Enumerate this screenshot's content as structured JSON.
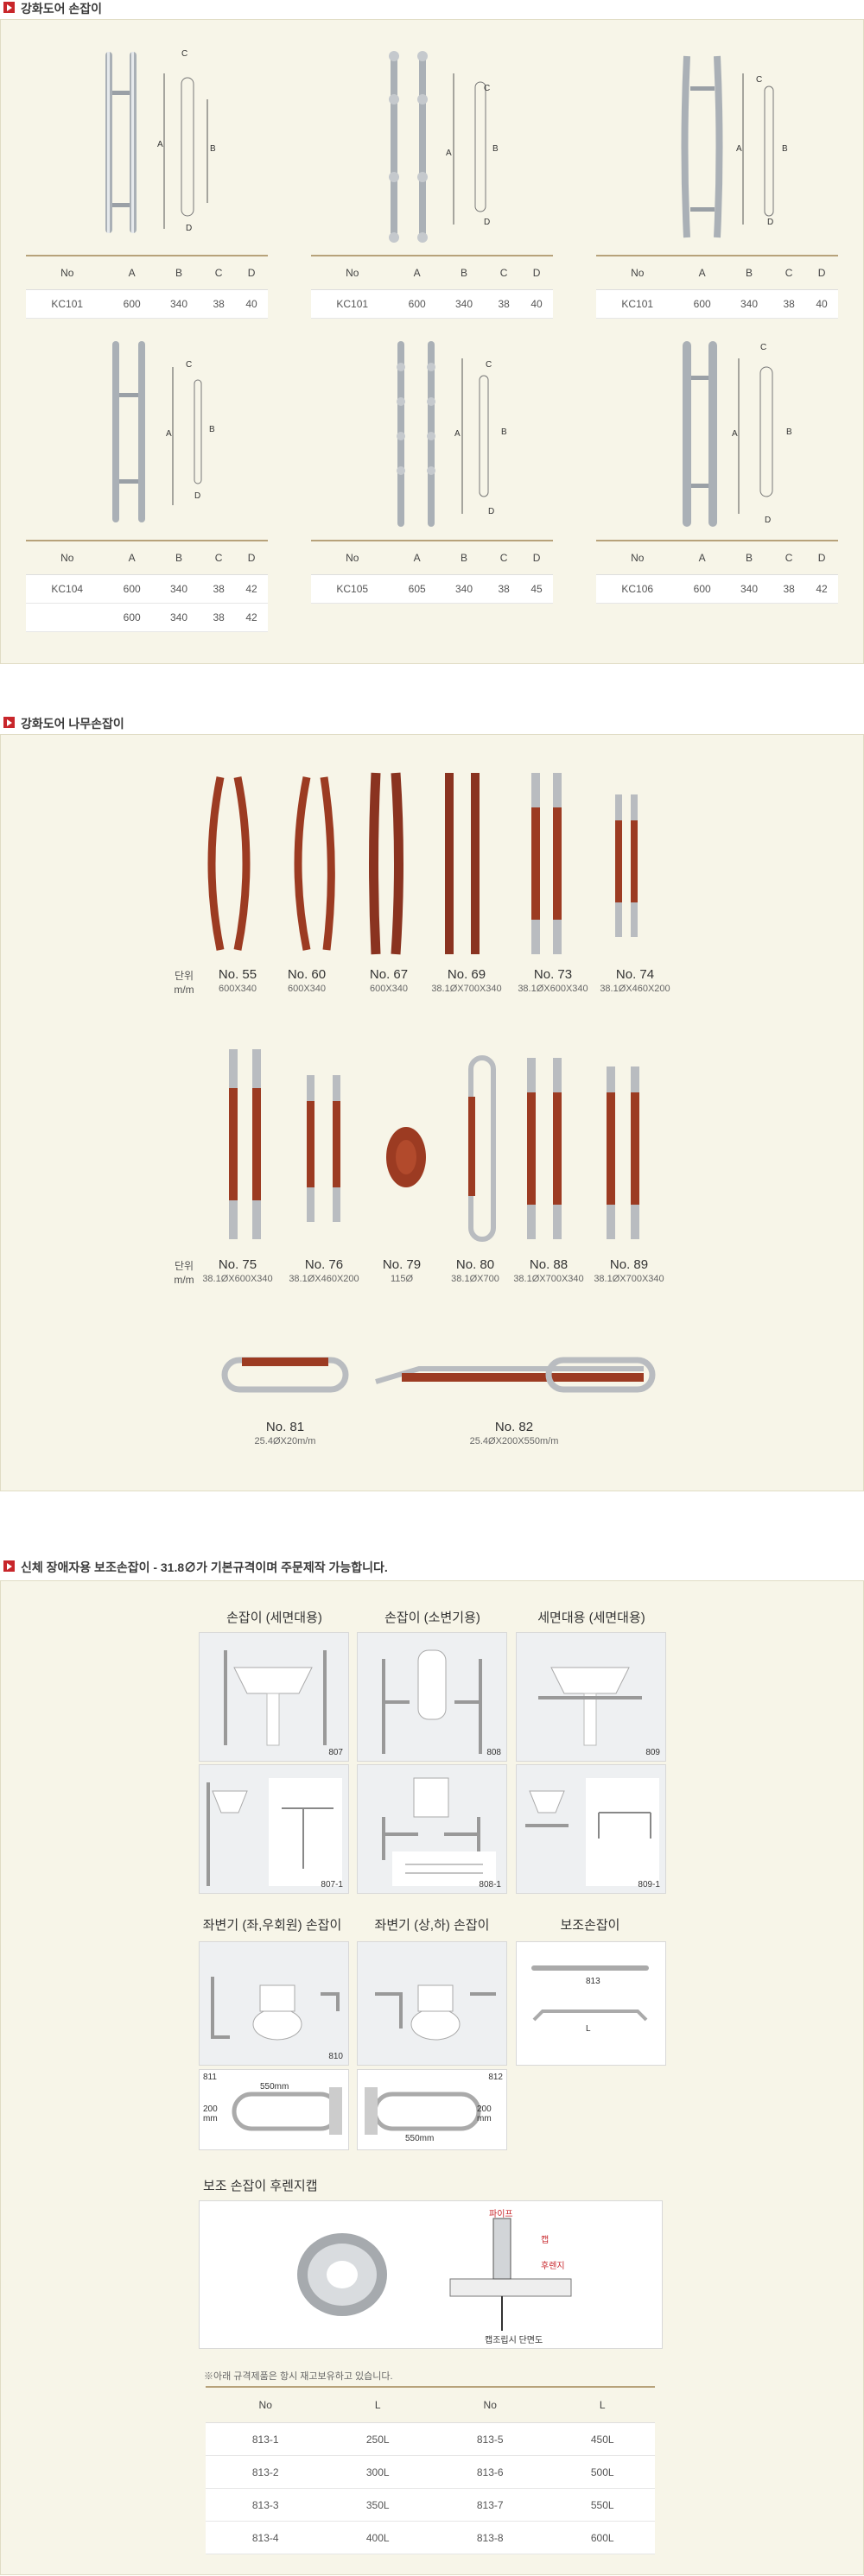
{
  "sections": {
    "glass_door_handle": "강화도어 손잡이",
    "wood_handle": "강화도어 나무손잡이",
    "assist_handle": "신체 장애자용 보조손잡이 - 31.8∅가 기본규격이며 주문제작 가능합니다."
  },
  "spec_headers": [
    "No",
    "A",
    "B",
    "C",
    "D"
  ],
  "spec_tables": [
    {
      "rows": [
        [
          "KC101",
          "600",
          "340",
          "38",
          "40"
        ]
      ]
    },
    {
      "rows": [
        [
          "KC101",
          "600",
          "340",
          "38",
          "40"
        ]
      ]
    },
    {
      "rows": [
        [
          "KC101",
          "600",
          "340",
          "38",
          "40"
        ]
      ]
    },
    {
      "rows": [
        [
          "KC104",
          "600",
          "340",
          "38",
          "42"
        ],
        [
          "",
          "600",
          "340",
          "38",
          "42"
        ]
      ]
    },
    {
      "rows": [
        [
          "KC105",
          "605",
          "340",
          "38",
          "45"
        ]
      ]
    },
    {
      "rows": [
        [
          "KC106",
          "600",
          "340",
          "38",
          "42"
        ]
      ]
    }
  ],
  "dim_letters": [
    "A",
    "B",
    "C",
    "D"
  ],
  "unit_label": {
    "line1": "단위",
    "line2": "m/m"
  },
  "wood_row1": [
    {
      "no": "No. 55",
      "dim": "600X340"
    },
    {
      "no": "No. 60",
      "dim": "600X340"
    },
    {
      "no": "No. 67",
      "dim": "600X340"
    },
    {
      "no": "No. 69",
      "dim": "38.1ØX700X340"
    },
    {
      "no": "No. 73",
      "dim": "38.1ØX600X340"
    },
    {
      "no": "No. 74",
      "dim": "38.1ØX460X200"
    }
  ],
  "wood_row2": [
    {
      "no": "No. 75",
      "dim": "38.1ØX600X340"
    },
    {
      "no": "No. 76",
      "dim": "38.1ØX460X200"
    },
    {
      "no": "No. 79",
      "dim": "115Ø"
    },
    {
      "no": "No. 80",
      "dim": "38.1ØX700"
    },
    {
      "no": "No. 88",
      "dim": "38.1ØX700X340"
    },
    {
      "no": "No. 89",
      "dim": "38.1ØX700X340"
    }
  ],
  "wood_row3": [
    {
      "no": "No. 81",
      "dim": "25.4ØX20m/m"
    },
    {
      "no": "No. 82",
      "dim": "25.4ØX200X550m/m"
    }
  ],
  "assist": {
    "col_titles": [
      "손잡이 (세면대용)",
      "손잡이 (소변기용)",
      "세면대용 (세면대용)"
    ],
    "codes_top": [
      "807",
      "808",
      "809"
    ],
    "codes_mid": [
      "807-1",
      "808-1",
      "809-1"
    ],
    "row2_titles": [
      "좌변기 (좌,우회원) 손잡이",
      "좌변기 (상,하) 손잡이",
      "보조손잡이"
    ],
    "codes_row2": [
      "810",
      "813",
      "L"
    ],
    "codes_row3": [
      "811",
      "812"
    ],
    "dims_550": "550mm",
    "dims_200": "200 mm",
    "dims_550b": "550mm",
    "dims_200b": "200 mm",
    "cap_title": "보조 손잡이 후렌지캡",
    "cap_labels": {
      "pipe": "파이프",
      "cap": "캡",
      "flange": "후렌지",
      "section": "캡조립시 단면도"
    },
    "note": "※아래 규격제품은 항시 재고보유하고 있습니다.",
    "len_headers": [
      "No",
      "L",
      "No",
      "L"
    ],
    "len_rows": [
      [
        "813-1",
        "250L",
        "813-5",
        "450L"
      ],
      [
        "813-2",
        "300L",
        "813-6",
        "500L"
      ],
      [
        "813-3",
        "350L",
        "813-7",
        "550L"
      ],
      [
        "813-4",
        "400L",
        "813-8",
        "600L"
      ]
    ]
  },
  "colors": {
    "accent": "#c8262b",
    "panel": "#f7f5e8",
    "rule": "#b7a27a",
    "wood": "#9c3b22",
    "steel": "#b9bcc0"
  }
}
